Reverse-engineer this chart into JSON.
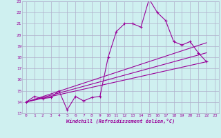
{
  "xlabel": "Windchill (Refroidissement éolien,°C)",
  "background_color": "#cff0f0",
  "grid_color": "#b0b0cc",
  "line_color": "#990099",
  "xlim": [
    -0.5,
    23.5
  ],
  "ylim": [
    13,
    23
  ],
  "xticks": [
    0,
    1,
    2,
    3,
    4,
    5,
    6,
    7,
    8,
    9,
    10,
    11,
    12,
    13,
    14,
    15,
    16,
    17,
    18,
    19,
    20,
    21,
    22,
    23
  ],
  "yticks": [
    13,
    14,
    15,
    16,
    17,
    18,
    19,
    20,
    21,
    22,
    23
  ],
  "main_line_x": [
    0,
    1,
    2,
    3,
    4,
    5,
    6,
    7,
    8,
    9,
    10,
    11,
    12,
    13,
    14,
    15,
    16,
    17,
    18,
    19,
    20,
    21,
    22
  ],
  "main_line_y": [
    14.0,
    14.5,
    14.3,
    14.4,
    15.0,
    13.3,
    14.5,
    14.1,
    14.4,
    14.5,
    18.0,
    20.3,
    21.0,
    21.0,
    20.7,
    23.2,
    22.0,
    21.3,
    19.4,
    19.1,
    19.4,
    18.4,
    17.6
  ],
  "linear_line1_x": [
    0,
    22
  ],
  "linear_line1_y": [
    14.0,
    19.3
  ],
  "linear_line2_x": [
    0,
    22
  ],
  "linear_line2_y": [
    14.0,
    17.6
  ],
  "linear_line3_x": [
    0,
    22
  ],
  "linear_line3_y": [
    14.0,
    18.4
  ]
}
